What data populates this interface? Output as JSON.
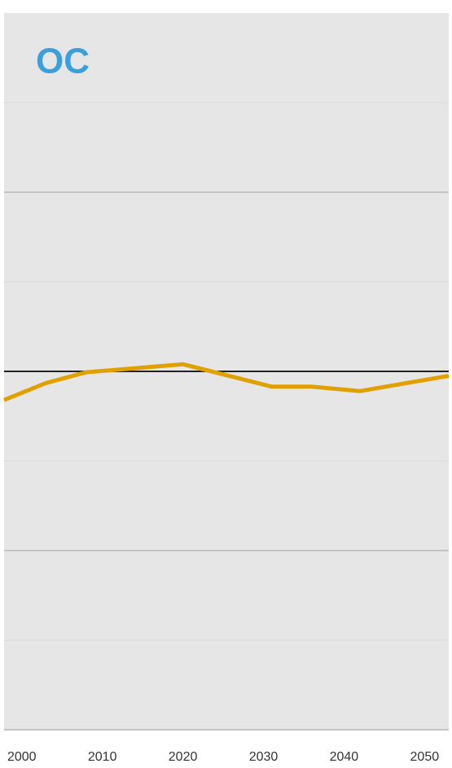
{
  "chart_data": {
    "type": "line",
    "title": "OC",
    "x": [
      1997.8,
      2003,
      2008,
      2020,
      2031,
      2036,
      2042,
      2053
    ],
    "series": [
      {
        "name": "OC",
        "color": "#e0a100",
        "values": [
          -0.32,
          -0.13,
          -0.01,
          0.08,
          -0.17,
          -0.17,
          -0.22,
          -0.05
        ]
      }
    ],
    "xlim": [
      1997.8,
      2053
    ],
    "xticks": [
      2000,
      2010,
      2020,
      2030,
      2040,
      2050
    ],
    "ylim": [
      -4,
      4
    ],
    "yticks": [
      -4,
      -3,
      -2,
      -1,
      0,
      1,
      2,
      3
    ],
    "reference_line": 0,
    "grid": true
  }
}
